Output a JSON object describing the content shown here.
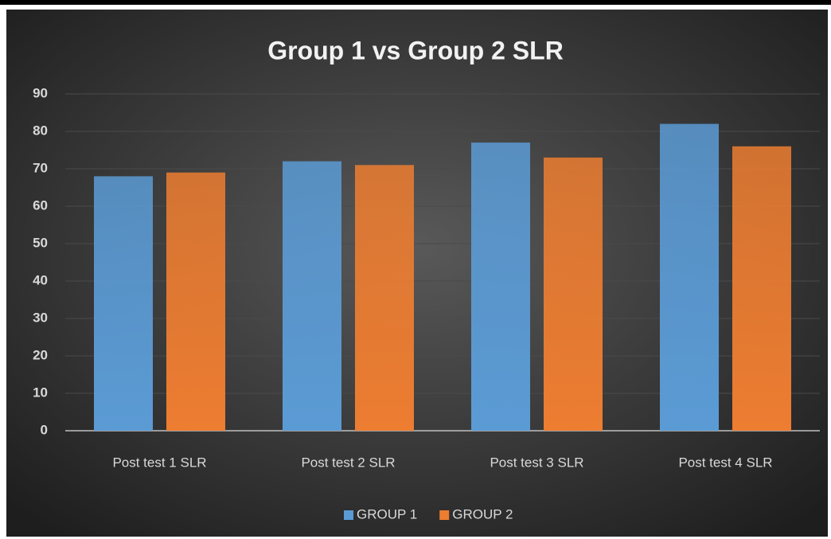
{
  "chart_data": {
    "type": "bar",
    "title": "Group 1 vs Group 2 SLR",
    "categories": [
      "Post test 1 SLR",
      "Post test 2 SLR",
      "Post test 3 SLR",
      "Post test 4 SLR"
    ],
    "series": [
      {
        "name": "GROUP 1",
        "color": "#5b9bd5",
        "values": [
          68,
          72,
          77,
          82
        ]
      },
      {
        "name": "GROUP 2",
        "color": "#ed7d31",
        "values": [
          69,
          71,
          73,
          76
        ]
      }
    ],
    "ylim": [
      0,
      90
    ],
    "yticks": [
      0,
      10,
      20,
      30,
      40,
      50,
      60,
      70,
      80,
      90
    ],
    "grid": true,
    "legend": "bottom"
  }
}
